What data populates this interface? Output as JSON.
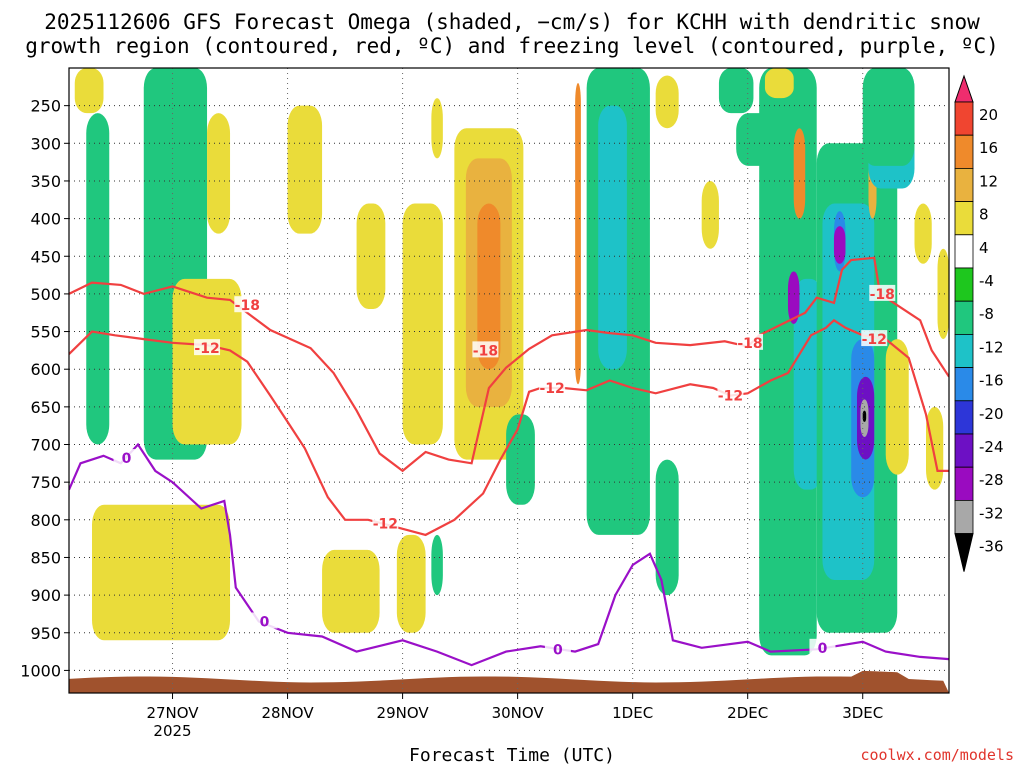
{
  "chart_data": {
    "type": "heatmap",
    "title_line1": "2025112606 GFS Forecast Omega (shaded, −cm/s) for KCHH with dendritic snow",
    "title_line2": "growth region (contoured, red, ºC) and freezing level (contoured, purple, ºC)",
    "xlabel": "Forecast Time (UTC)",
    "x_ticks": [
      {
        "label": "27NOV",
        "sub": "2025",
        "t": 1
      },
      {
        "label": "28NOV",
        "sub": "",
        "t": 2
      },
      {
        "label": "29NOV",
        "sub": "",
        "t": 3
      },
      {
        "label": "30NOV",
        "sub": "",
        "t": 4
      },
      {
        "label": "1DEC",
        "sub": "",
        "t": 5
      },
      {
        "label": "2DEC",
        "sub": "",
        "t": 6
      },
      {
        "label": "3DEC",
        "sub": "",
        "t": 7
      }
    ],
    "xlim": [
      0.1,
      7.75
    ],
    "y_levels": [
      250,
      300,
      350,
      400,
      450,
      500,
      550,
      600,
      650,
      700,
      750,
      800,
      850,
      900,
      950,
      1000
    ],
    "ylim": [
      200,
      1030
    ],
    "colorbar": {
      "ticks": [
        20,
        16,
        12,
        8,
        4,
        -4,
        -8,
        -12,
        -16,
        -20,
        -24,
        -28,
        -32,
        -36
      ],
      "colors": [
        "#ef2d6e",
        "#f04530",
        "#ef8a2b",
        "#e9b23f",
        "#eadc3a",
        "#ffffff",
        "#1ec71e",
        "#20c77e",
        "#1ec2c8",
        "#2a8ae8",
        "#2d36d8",
        "#6d10c4",
        "#9a0bc0",
        "#a8a8a8",
        "#000000"
      ]
    },
    "dgz_contours": [
      {
        "label": "-18",
        "points": [
          [
            0.1,
            500
          ],
          [
            0.3,
            485
          ],
          [
            0.55,
            488
          ],
          [
            0.75,
            500
          ],
          [
            1.0,
            490
          ],
          [
            1.3,
            505
          ],
          [
            1.5,
            508
          ],
          [
            1.85,
            548
          ],
          [
            2.2,
            572
          ],
          [
            2.4,
            605
          ],
          [
            2.6,
            655
          ],
          [
            2.8,
            712
          ],
          [
            3.0,
            735
          ],
          [
            3.2,
            710
          ],
          [
            3.4,
            720
          ],
          [
            3.6,
            725
          ],
          [
            3.75,
            625
          ],
          [
            3.9,
            598
          ],
          [
            4.1,
            573
          ],
          [
            4.3,
            555
          ],
          [
            4.6,
            548
          ],
          [
            4.8,
            552
          ],
          [
            5.0,
            555
          ],
          [
            5.2,
            565
          ],
          [
            5.5,
            568
          ],
          [
            5.8,
            563
          ],
          [
            6.0,
            570
          ],
          [
            6.1,
            555
          ],
          [
            6.3,
            540
          ],
          [
            6.5,
            525
          ],
          [
            6.6,
            505
          ],
          [
            6.75,
            512
          ],
          [
            6.82,
            468
          ],
          [
            6.9,
            455
          ],
          [
            7.1,
            452
          ],
          [
            7.15,
            500
          ],
          [
            7.3,
            515
          ],
          [
            7.5,
            535
          ],
          [
            7.6,
            575
          ],
          [
            7.75,
            610
          ]
        ]
      },
      {
        "label": "-12",
        "points": [
          [
            0.1,
            580
          ],
          [
            0.3,
            550
          ],
          [
            0.5,
            555
          ],
          [
            0.75,
            560
          ],
          [
            1.0,
            565
          ],
          [
            1.3,
            568
          ],
          [
            1.5,
            575
          ],
          [
            1.65,
            590
          ],
          [
            1.85,
            635
          ],
          [
            2.0,
            670
          ],
          [
            2.15,
            705
          ],
          [
            2.35,
            770
          ],
          [
            2.5,
            800
          ],
          [
            2.7,
            800
          ],
          [
            3.0,
            812
          ],
          [
            3.2,
            820
          ],
          [
            3.45,
            800
          ],
          [
            3.7,
            765
          ],
          [
            3.85,
            720
          ],
          [
            4.0,
            680
          ],
          [
            4.1,
            630
          ],
          [
            4.2,
            625
          ],
          [
            4.4,
            625
          ],
          [
            4.6,
            628
          ],
          [
            4.8,
            615
          ],
          [
            5.0,
            625
          ],
          [
            5.2,
            632
          ],
          [
            5.5,
            620
          ],
          [
            5.7,
            625
          ],
          [
            5.85,
            635
          ],
          [
            6.0,
            632
          ],
          [
            6.2,
            615
          ],
          [
            6.35,
            605
          ],
          [
            6.55,
            555
          ],
          [
            6.68,
            545
          ],
          [
            6.75,
            535
          ],
          [
            6.85,
            545
          ],
          [
            7.0,
            555
          ],
          [
            7.2,
            560
          ],
          [
            7.4,
            585
          ],
          [
            7.55,
            660
          ],
          [
            7.65,
            735
          ],
          [
            7.75,
            735
          ]
        ]
      }
    ],
    "freezing_contour": {
      "label": "0",
      "points": [
        [
          0.1,
          760
        ],
        [
          0.2,
          725
        ],
        [
          0.4,
          715
        ],
        [
          0.55,
          725
        ],
        [
          0.7,
          700
        ],
        [
          0.85,
          735
        ],
        [
          1.0,
          750
        ],
        [
          1.25,
          785
        ],
        [
          1.45,
          775
        ],
        [
          1.5,
          820
        ],
        [
          1.55,
          890
        ],
        [
          1.75,
          935
        ],
        [
          2.0,
          950
        ],
        [
          2.3,
          955
        ],
        [
          2.6,
          975
        ],
        [
          3.0,
          960
        ],
        [
          3.3,
          975
        ],
        [
          3.6,
          993
        ],
        [
          3.9,
          975
        ],
        [
          4.2,
          968
        ],
        [
          4.5,
          975
        ],
        [
          4.7,
          965
        ],
        [
          4.85,
          900
        ],
        [
          5.0,
          860
        ],
        [
          5.15,
          845
        ],
        [
          5.25,
          880
        ],
        [
          5.35,
          960
        ],
        [
          5.6,
          970
        ],
        [
          6.0,
          962
        ],
        [
          6.2,
          975
        ],
        [
          6.6,
          972
        ],
        [
          7.0,
          962
        ],
        [
          7.2,
          975
        ],
        [
          7.5,
          982
        ],
        [
          7.75,
          985
        ]
      ]
    },
    "omega_regions": [
      {
        "value": 6,
        "t0": 0.15,
        "t1": 0.4,
        "p0": 200,
        "p1": 260
      },
      {
        "value": -9,
        "t0": 0.25,
        "t1": 0.45,
        "p0": 260,
        "p1": 700
      },
      {
        "value": -9,
        "t0": 0.75,
        "t1": 1.3,
        "p0": 200,
        "p1": 720
      },
      {
        "value": 6,
        "t0": 1.0,
        "t1": 1.6,
        "p0": 480,
        "p1": 700
      },
      {
        "value": 6,
        "t0": 1.3,
        "t1": 1.5,
        "p0": 260,
        "p1": 420
      },
      {
        "value": 6,
        "t0": 0.3,
        "t1": 1.5,
        "p0": 780,
        "p1": 960
      },
      {
        "value": 6,
        "t0": 2.3,
        "t1": 2.8,
        "p0": 840,
        "p1": 950
      },
      {
        "value": 6,
        "t0": 2.0,
        "t1": 2.3,
        "p0": 250,
        "p1": 420
      },
      {
        "value": 6,
        "t0": 2.6,
        "t1": 2.85,
        "p0": 380,
        "p1": 520
      },
      {
        "value": 6,
        "t0": 2.95,
        "t1": 3.2,
        "p0": 820,
        "p1": 950
      },
      {
        "value": 6,
        "t0": 3.0,
        "t1": 3.35,
        "p0": 380,
        "p1": 700
      },
      {
        "value": -9,
        "t0": 3.25,
        "t1": 3.35,
        "p0": 820,
        "p1": 900
      },
      {
        "value": 6,
        "t0": 3.45,
        "t1": 4.05,
        "p0": 280,
        "p1": 720
      },
      {
        "value": 10,
        "t0": 3.55,
        "t1": 3.95,
        "p0": 320,
        "p1": 650
      },
      {
        "value": 14,
        "t0": 3.65,
        "t1": 3.85,
        "p0": 380,
        "p1": 600
      },
      {
        "value": 6,
        "t0": 3.25,
        "t1": 3.35,
        "p0": 240,
        "p1": 320
      },
      {
        "value": -9,
        "t0": 3.9,
        "t1": 4.15,
        "p0": 660,
        "p1": 780
      },
      {
        "value": 14,
        "t0": 4.5,
        "t1": 4.55,
        "p0": 220,
        "p1": 620
      },
      {
        "value": -9,
        "t0": 4.6,
        "t1": 5.15,
        "p0": 200,
        "p1": 820
      },
      {
        "value": -13,
        "t0": 4.7,
        "t1": 4.95,
        "p0": 250,
        "p1": 600
      },
      {
        "value": -9,
        "t0": 5.2,
        "t1": 5.4,
        "p0": 720,
        "p1": 900
      },
      {
        "value": 6,
        "t0": 5.2,
        "t1": 5.4,
        "p0": 210,
        "p1": 280
      },
      {
        "value": 6,
        "t0": 5.6,
        "t1": 5.75,
        "p0": 350,
        "p1": 440
      },
      {
        "value": -9,
        "t0": 5.75,
        "t1": 6.05,
        "p0": 200,
        "p1": 260
      },
      {
        "value": -9,
        "t0": 5.9,
        "t1": 6.25,
        "p0": 260,
        "p1": 330
      },
      {
        "value": -9,
        "t0": 6.1,
        "t1": 6.6,
        "p0": 200,
        "p1": 980
      },
      {
        "value": 6,
        "t0": 6.15,
        "t1": 6.4,
        "p0": 200,
        "p1": 240
      },
      {
        "value": 14,
        "t0": 6.4,
        "t1": 6.5,
        "p0": 280,
        "p1": 400
      },
      {
        "value": -13,
        "t0": 6.4,
        "t1": 6.65,
        "p0": 480,
        "p1": 760
      },
      {
        "value": -9,
        "t0": 6.6,
        "t1": 7.3,
        "p0": 300,
        "p1": 950
      },
      {
        "value": -13,
        "t0": 6.65,
        "t1": 7.1,
        "p0": 380,
        "p1": 880
      },
      {
        "value": -17,
        "t0": 6.75,
        "t1": 6.85,
        "p0": 390,
        "p1": 470
      },
      {
        "value": -29,
        "t0": 6.75,
        "t1": 6.85,
        "p0": 410,
        "p1": 460
      },
      {
        "value": -17,
        "t0": 6.9,
        "t1": 7.1,
        "p0": 560,
        "p1": 770
      },
      {
        "value": -25,
        "t0": 6.95,
        "t1": 7.1,
        "p0": 610,
        "p1": 720
      },
      {
        "value": -33,
        "t0": 6.98,
        "t1": 7.05,
        "p0": 640,
        "p1": 690
      },
      {
        "value": -38,
        "t0": 7.0,
        "t1": 7.03,
        "p0": 655,
        "p1": 670
      },
      {
        "value": -29,
        "t0": 6.35,
        "t1": 6.45,
        "p0": 470,
        "p1": 540
      },
      {
        "value": 14,
        "t0": 7.05,
        "t1": 7.1,
        "p0": 280,
        "p1": 330
      },
      {
        "value": 10,
        "t0": 7.05,
        "t1": 7.12,
        "p0": 250,
        "p1": 400
      },
      {
        "value": -13,
        "t0": 7.05,
        "t1": 7.45,
        "p0": 200,
        "p1": 360
      },
      {
        "value": -9,
        "t0": 7.0,
        "t1": 7.45,
        "p0": 200,
        "p1": 330
      },
      {
        "value": 6,
        "t0": 7.2,
        "t1": 7.4,
        "p0": 560,
        "p1": 740
      },
      {
        "value": 6,
        "t0": 7.65,
        "t1": 7.75,
        "p0": 440,
        "p1": 560
      },
      {
        "value": 6,
        "t0": 7.55,
        "t1": 7.7,
        "p0": 650,
        "p1": 760
      },
      {
        "value": 6,
        "t0": 7.45,
        "t1": 7.6,
        "p0": 380,
        "p1": 460
      }
    ]
  },
  "credit": "coolwx.com/models"
}
